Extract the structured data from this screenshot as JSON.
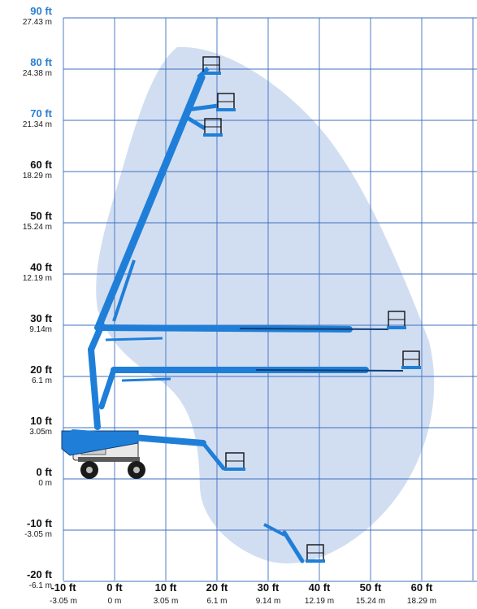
{
  "colors": {
    "grid": "#3f6fbf",
    "envelope": "#c9d8f0",
    "boom": "#1f7fd8",
    "boom_dark": "#0d3f78",
    "label_highlight": "#2b7fd0",
    "label_default": "#111111"
  },
  "chart_data": {
    "type": "diagram",
    "subject": "articulating boom lift working range",
    "y_ticks": [
      {
        "ft": "90 ft",
        "m": "27.43 m",
        "highlight": true
      },
      {
        "ft": "80 ft",
        "m": "24.38 m",
        "highlight": true
      },
      {
        "ft": "70 ft",
        "m": "21.34 m",
        "highlight": true
      },
      {
        "ft": "60 ft",
        "m": "18.29 m",
        "highlight": false
      },
      {
        "ft": "50 ft",
        "m": "15.24 m",
        "highlight": false
      },
      {
        "ft": "40 ft",
        "m": "12.19 m",
        "highlight": false
      },
      {
        "ft": "30 ft",
        "m": "9.14m",
        "highlight": false
      },
      {
        "ft": "20 ft",
        "m": "6.1 m",
        "highlight": false
      },
      {
        "ft": "10 ft",
        "m": "3.05m",
        "highlight": false
      },
      {
        "ft": "0 ft",
        "m": "0 m",
        "highlight": false
      },
      {
        "ft": "-10 ft",
        "m": "-3.05 m",
        "highlight": false
      },
      {
        "ft": "-20 ft",
        "m": "-6.1 m",
        "highlight": false
      }
    ],
    "x_ticks": [
      {
        "ft": "-10 ft",
        "m": "-3.05 m"
      },
      {
        "ft": "0 ft",
        "m": "0 m"
      },
      {
        "ft": "10 ft",
        "m": "3.05 m"
      },
      {
        "ft": "20 ft",
        "m": "6.1 m"
      },
      {
        "ft": "30 ft",
        "m": "9.14 m"
      },
      {
        "ft": "40 ft",
        "m": "12.19 m"
      },
      {
        "ft": "50 ft",
        "m": "15.24 m"
      },
      {
        "ft": "60 ft",
        "m": "18.29 m"
      }
    ],
    "x_range_ft": [
      -10,
      70
    ],
    "y_range_ft": [
      -20,
      90
    ],
    "grid": true
  }
}
